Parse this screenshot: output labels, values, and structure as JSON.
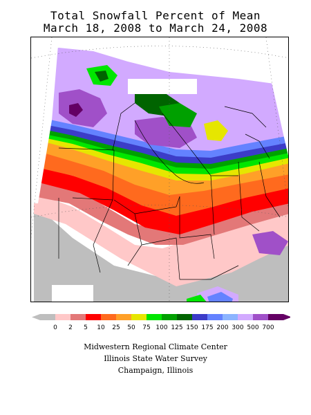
{
  "title": {
    "line1": "Total Snowfall Percent of Mean",
    "line2": "March 18, 2008 to March 24, 2008"
  },
  "legend": {
    "labels": [
      "0",
      "2",
      "5",
      "10",
      "25",
      "50",
      "75",
      "100",
      "125",
      "150",
      "175",
      "200",
      "300",
      "500",
      "700"
    ],
    "colors": [
      "#bebebe",
      "#ffc8c8",
      "#e37878",
      "#ff0000",
      "#ff6a1e",
      "#ffa028",
      "#e6e600",
      "#00e600",
      "#00a000",
      "#006400",
      "#3c3cc8",
      "#6482ff",
      "#8cb4ff",
      "#d2aaff",
      "#a050c8",
      "#640064"
    ]
  },
  "footer": {
    "line1": "Midwestern Regional Climate Center",
    "line2": "Illinois State Water Survey",
    "line3": "Champaign, Illinois"
  }
}
